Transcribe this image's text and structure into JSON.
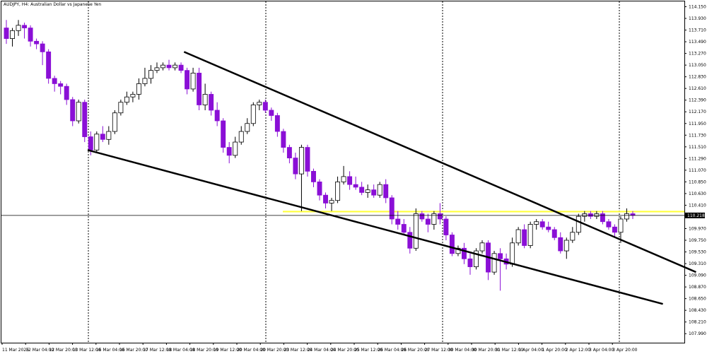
{
  "title": "AUDJPY, H4:  Australian Dollar vs Japanese Yen",
  "chart_data": {
    "type": "candlestick",
    "symbol": "AUDJPY",
    "timeframe": "H4",
    "description": "Australian Dollar vs Japanese Yen",
    "colors": {
      "bull_body": "#ffffff",
      "bull_outline": "#000000",
      "bear_body": "#8a0fd6",
      "wick_bear": "#8a0fd6",
      "wick_bull": "#000000",
      "grid": "#000000",
      "level": "#ffff3c",
      "trendline": "#000000"
    },
    "ylim": [
      107.82,
      114.25
    ],
    "y_ticks": [
      "114.150",
      "113.930",
      "113.710",
      "113.490",
      "113.270",
      "113.050",
      "112.830",
      "112.610",
      "112.390",
      "112.170",
      "111.950",
      "111.730",
      "111.510",
      "111.290",
      "111.070",
      "110.850",
      "110.630",
      "110.410",
      "109.970",
      "109.750",
      "109.530",
      "109.310",
      "109.090",
      "108.870",
      "108.650",
      "108.430",
      "108.210",
      "107.990"
    ],
    "x_ticks": [
      "11 Mar 2026",
      "12 Mar 04:00",
      "12 Mar 20:00",
      "13 Mar 12:00",
      "16 Mar 04:00",
      "16 Mar 20:00",
      "17 Mar 12:00",
      "18 Mar 04:00",
      "18 Mar 20:00",
      "19 Mar 12:00",
      "20 Mar 04:00",
      "20 Mar 20:00",
      "23 Mar 12:00",
      "24 Mar 04:00",
      "24 Mar 20:00",
      "25 Mar 12:00",
      "26 Mar 04:00",
      "26 Mar 20:00",
      "27 Mar 12:00",
      "30 Mar 04:00",
      "30 Mar 20:00",
      "31 Mar 12:00",
      "1 Apr 04:00",
      "1 Apr 20:00",
      "2 Apr 12:00",
      "3 Apr 04:00",
      "3 Apr 20:00"
    ],
    "period_separators": [
      "13 Mar 12:00",
      "20 Mar 04:00",
      "27 Mar 12:00",
      "3 Apr 20:00"
    ],
    "last_price": "110.218",
    "horizontal_level": 110.29,
    "candles": [
      [
        113.75,
        113.9,
        113.45,
        113.55
      ],
      [
        113.55,
        113.75,
        113.4,
        113.7
      ],
      [
        113.7,
        113.9,
        113.6,
        113.8
      ],
      [
        113.8,
        113.85,
        113.55,
        113.75
      ],
      [
        113.75,
        113.8,
        113.4,
        113.5
      ],
      [
        113.5,
        113.55,
        113.35,
        113.45
      ],
      [
        113.45,
        113.5,
        113.05,
        113.3
      ],
      [
        113.3,
        113.35,
        112.7,
        112.8
      ],
      [
        112.8,
        112.85,
        112.55,
        112.7
      ],
      [
        112.7,
        112.75,
        112.5,
        112.65
      ],
      [
        112.65,
        112.7,
        112.3,
        112.4
      ],
      [
        112.4,
        112.45,
        111.9,
        112.0
      ],
      [
        112.0,
        112.4,
        111.95,
        112.35
      ],
      [
        112.35,
        112.4,
        111.6,
        111.7
      ],
      [
        111.7,
        111.8,
        111.35,
        111.45
      ],
      [
        111.45,
        111.8,
        111.4,
        111.75
      ],
      [
        111.75,
        111.9,
        111.6,
        111.65
      ],
      [
        111.65,
        111.9,
        111.55,
        111.8
      ],
      [
        111.8,
        112.2,
        111.75,
        112.15
      ],
      [
        112.15,
        112.4,
        112.1,
        112.35
      ],
      [
        112.35,
        112.55,
        112.3,
        112.45
      ],
      [
        112.45,
        112.55,
        112.35,
        112.5
      ],
      [
        112.5,
        112.8,
        112.4,
        112.7
      ],
      [
        112.7,
        113.0,
        112.65,
        112.8
      ],
      [
        112.8,
        113.05,
        112.7,
        112.95
      ],
      [
        112.95,
        113.1,
        112.9,
        113.0
      ],
      [
        113.0,
        113.1,
        112.95,
        113.05
      ],
      [
        113.05,
        113.15,
        112.95,
        113.0
      ],
      [
        113.0,
        113.1,
        112.95,
        113.05
      ],
      [
        113.05,
        113.1,
        112.9,
        112.95
      ],
      [
        112.95,
        113.0,
        112.5,
        112.6
      ],
      [
        112.6,
        113.0,
        112.55,
        112.9
      ],
      [
        112.9,
        113.0,
        112.2,
        112.3
      ],
      [
        112.3,
        112.7,
        112.2,
        112.5
      ],
      [
        112.5,
        112.55,
        112.1,
        112.2
      ],
      [
        112.2,
        112.35,
        111.9,
        112.0
      ],
      [
        112.0,
        112.05,
        111.4,
        111.5
      ],
      [
        111.5,
        111.6,
        111.2,
        111.35
      ],
      [
        111.35,
        111.7,
        111.3,
        111.6
      ],
      [
        111.6,
        111.9,
        111.55,
        111.8
      ],
      [
        111.8,
        112.05,
        111.75,
        111.95
      ],
      [
        111.95,
        112.35,
        111.9,
        112.3
      ],
      [
        112.3,
        112.4,
        112.2,
        112.35
      ],
      [
        112.35,
        112.4,
        112.15,
        112.2
      ],
      [
        112.2,
        112.25,
        112.0,
        112.1
      ],
      [
        112.1,
        112.15,
        111.7,
        111.8
      ],
      [
        111.8,
        111.85,
        111.4,
        111.5
      ],
      [
        111.5,
        111.55,
        111.2,
        111.3
      ],
      [
        111.3,
        111.4,
        110.9,
        111.0
      ],
      [
        111.0,
        111.55,
        110.3,
        111.5
      ],
      [
        111.5,
        111.55,
        110.95,
        111.05
      ],
      [
        111.05,
        111.1,
        110.75,
        110.85
      ],
      [
        110.85,
        110.9,
        110.5,
        110.6
      ],
      [
        110.6,
        110.65,
        110.35,
        110.45
      ],
      [
        110.45,
        110.55,
        110.3,
        110.5
      ],
      [
        110.5,
        110.95,
        110.45,
        110.85
      ],
      [
        110.85,
        111.15,
        110.8,
        110.95
      ],
      [
        110.95,
        111.05,
        110.7,
        110.8
      ],
      [
        110.8,
        110.95,
        110.7,
        110.75
      ],
      [
        110.75,
        110.85,
        110.6,
        110.65
      ],
      [
        110.65,
        110.8,
        110.55,
        110.7
      ],
      [
        110.7,
        110.8,
        110.55,
        110.6
      ],
      [
        110.6,
        110.85,
        110.55,
        110.8
      ],
      [
        110.8,
        110.9,
        110.45,
        110.55
      ],
      [
        110.55,
        110.6,
        110.05,
        110.15
      ],
      [
        110.15,
        110.3,
        109.95,
        110.05
      ],
      [
        110.05,
        110.15,
        109.85,
        109.9
      ],
      [
        109.9,
        110.0,
        109.5,
        109.6
      ],
      [
        109.6,
        110.35,
        109.55,
        110.25
      ],
      [
        110.25,
        110.3,
        110.1,
        110.15
      ],
      [
        110.15,
        110.25,
        109.9,
        110.05
      ],
      [
        110.05,
        110.3,
        109.95,
        110.25
      ],
      [
        110.25,
        110.45,
        110.05,
        110.15
      ],
      [
        110.15,
        110.2,
        109.75,
        109.85
      ],
      [
        109.85,
        109.9,
        109.45,
        109.5
      ],
      [
        109.5,
        109.65,
        109.45,
        109.6
      ],
      [
        109.6,
        109.7,
        109.3,
        109.4
      ],
      [
        109.4,
        109.5,
        109.1,
        109.25
      ],
      [
        109.25,
        109.6,
        109.2,
        109.55
      ],
      [
        109.55,
        109.75,
        109.5,
        109.7
      ],
      [
        109.7,
        109.75,
        109.0,
        109.15
      ],
      [
        109.15,
        109.55,
        109.1,
        109.5
      ],
      [
        109.5,
        109.6,
        108.8,
        109.4
      ],
      [
        109.4,
        109.5,
        109.2,
        109.3
      ],
      [
        109.3,
        109.8,
        109.25,
        109.7
      ],
      [
        109.7,
        110.0,
        109.65,
        109.95
      ],
      [
        109.95,
        110.05,
        109.6,
        109.65
      ],
      [
        109.65,
        110.1,
        109.6,
        110.05
      ],
      [
        110.05,
        110.15,
        109.95,
        110.1
      ],
      [
        110.1,
        110.15,
        109.95,
        110.0
      ],
      [
        110.0,
        110.1,
        109.9,
        109.95
      ],
      [
        109.95,
        110.0,
        109.75,
        109.8
      ],
      [
        109.8,
        109.9,
        109.5,
        109.55
      ],
      [
        109.55,
        109.8,
        109.4,
        109.75
      ],
      [
        109.75,
        110.0,
        109.7,
        109.9
      ],
      [
        109.9,
        110.25,
        109.85,
        110.2
      ],
      [
        110.2,
        110.3,
        110.1,
        110.25
      ],
      [
        110.25,
        110.3,
        110.15,
        110.2
      ],
      [
        110.2,
        110.3,
        110.15,
        110.25
      ],
      [
        110.25,
        110.3,
        110.05,
        110.1
      ],
      [
        110.1,
        110.15,
        109.95,
        110.0
      ],
      [
        110.0,
        110.05,
        109.8,
        109.9
      ],
      [
        109.9,
        110.2,
        109.7,
        110.15
      ],
      [
        110.15,
        110.35,
        110.1,
        110.25
      ],
      [
        110.25,
        110.3,
        110.15,
        110.22
      ]
    ],
    "trendlines": [
      {
        "from": [
          29.5,
          113.3
        ],
        "to": [
          114.5,
          109.15
        ]
      },
      {
        "from": [
          13.5,
          111.45
        ],
        "to": [
          109.0,
          108.55
        ]
      }
    ]
  }
}
